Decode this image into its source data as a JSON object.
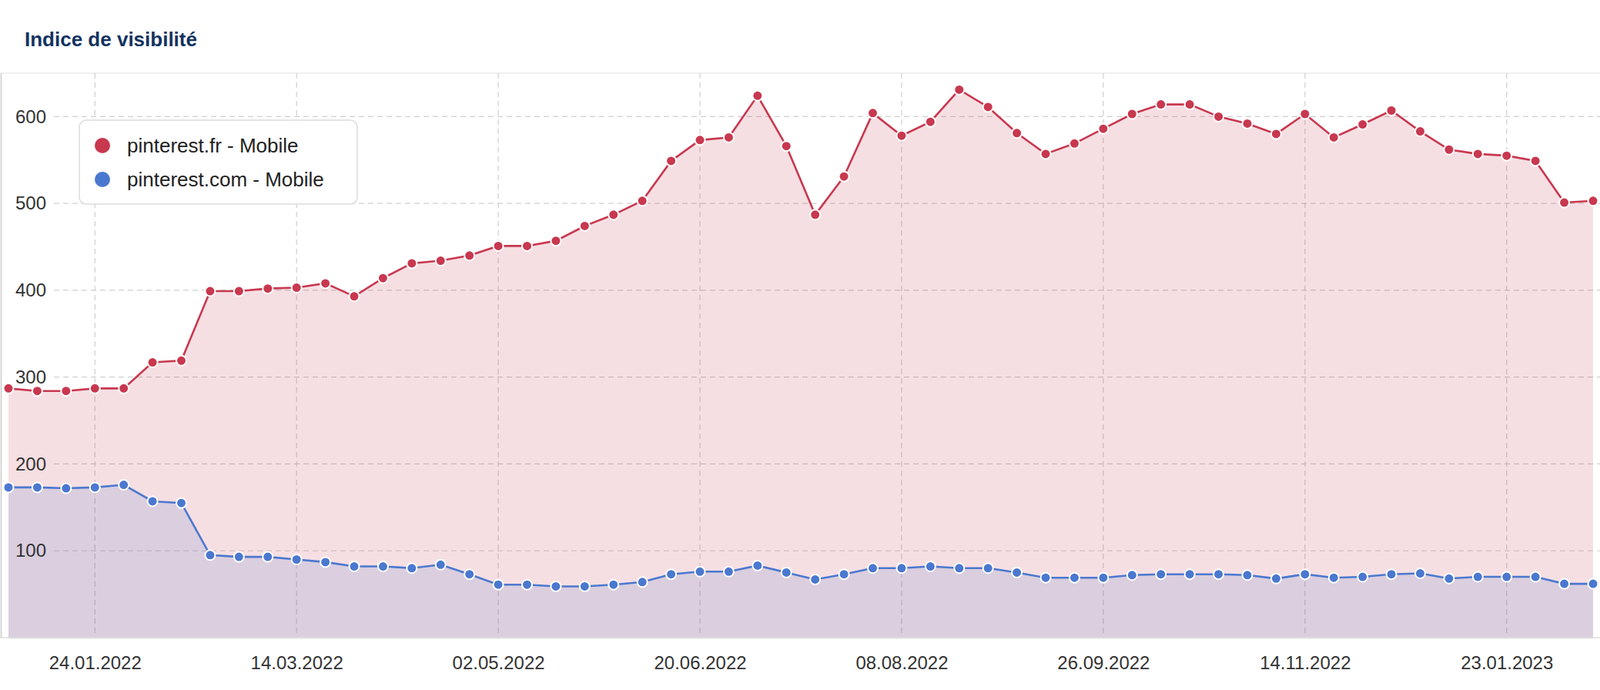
{
  "chart_data": {
    "type": "area",
    "title": "Indice de visibilité",
    "categories": [
      null,
      null,
      null,
      "24.01.2022",
      null,
      null,
      null,
      null,
      null,
      null,
      "14.03.2022",
      null,
      null,
      null,
      null,
      null,
      null,
      "02.05.2022",
      null,
      null,
      null,
      null,
      null,
      null,
      "20.06.2022",
      null,
      null,
      null,
      null,
      null,
      null,
      "08.08.2022",
      null,
      null,
      null,
      null,
      null,
      null,
      "26.09.2022",
      null,
      null,
      null,
      null,
      null,
      null,
      "14.11.2022",
      null,
      null,
      null,
      null,
      null,
      null,
      "23.01.2023",
      null,
      null,
      null
    ],
    "series": [
      {
        "name": "pinterest.fr - Mobile",
        "color": "#c8384f",
        "values": [
          287,
          284,
          284,
          287,
          287,
          317,
          319,
          399,
          399,
          402,
          403,
          408,
          393,
          414,
          431,
          434,
          440,
          451,
          451,
          457,
          474,
          487,
          503,
          549,
          573,
          576,
          624,
          566,
          487,
          531,
          604,
          578,
          594,
          631,
          611,
          581,
          557,
          569,
          586,
          603,
          614,
          614,
          600,
          592,
          580,
          603,
          576,
          591,
          607,
          583,
          562,
          557,
          555,
          549,
          501,
          503
        ]
      },
      {
        "name": "pinterest.com - Mobile",
        "color": "#4b78cf",
        "values": [
          173,
          173,
          172,
          173,
          176,
          157,
          155,
          95,
          93,
          93,
          90,
          87,
          82,
          82,
          80,
          84,
          73,
          61,
          61,
          59,
          59,
          61,
          64,
          73,
          76,
          76,
          83,
          75,
          67,
          73,
          80,
          80,
          82,
          80,
          80,
          75,
          69,
          69,
          69,
          72,
          73,
          73,
          73,
          72,
          68,
          73,
          69,
          70,
          73,
          74,
          68,
          70,
          70,
          70,
          62,
          62
        ]
      }
    ],
    "ylim": [
      0,
      650
    ],
    "yticks": [
      100,
      200,
      300,
      400,
      500,
      600
    ],
    "grid": true,
    "legend": "top-left",
    "marker": "circle"
  }
}
